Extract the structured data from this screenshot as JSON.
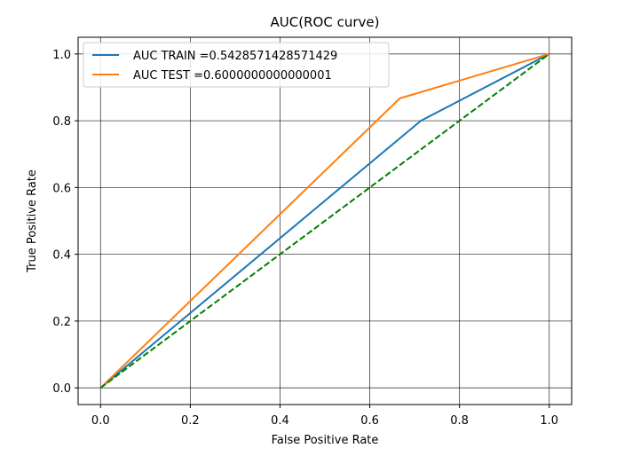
{
  "chart_data": {
    "type": "line",
    "title": "AUC(ROC curve)",
    "xlabel": "False Positive Rate",
    "ylabel": "True Positive Rate",
    "xlim": [
      -0.05,
      1.05
    ],
    "ylim": [
      -0.05,
      1.05
    ],
    "xticks": [
      "0.0",
      "0.2",
      "0.4",
      "0.6",
      "0.8",
      "1.0"
    ],
    "yticks": [
      "0.0",
      "0.2",
      "0.4",
      "0.6",
      "0.8",
      "1.0"
    ],
    "grid": true,
    "legend_position": "top-left",
    "series": [
      {
        "name": "AUC TRAIN =0.5428571428571429",
        "color": "#1f77b4",
        "style": "solid",
        "x": [
          0.0,
          0.714,
          1.0
        ],
        "y": [
          0.0,
          0.8,
          1.0
        ]
      },
      {
        "name": "AUC TEST =0.6000000000000001",
        "color": "#ff7f0e",
        "style": "solid",
        "x": [
          0.0,
          0.667,
          1.0
        ],
        "y": [
          0.0,
          0.867,
          1.0
        ]
      },
      {
        "color": "#008000",
        "style": "dashed",
        "x": [
          0.0,
          1.0
        ],
        "y": [
          0.0,
          1.0
        ]
      }
    ]
  }
}
